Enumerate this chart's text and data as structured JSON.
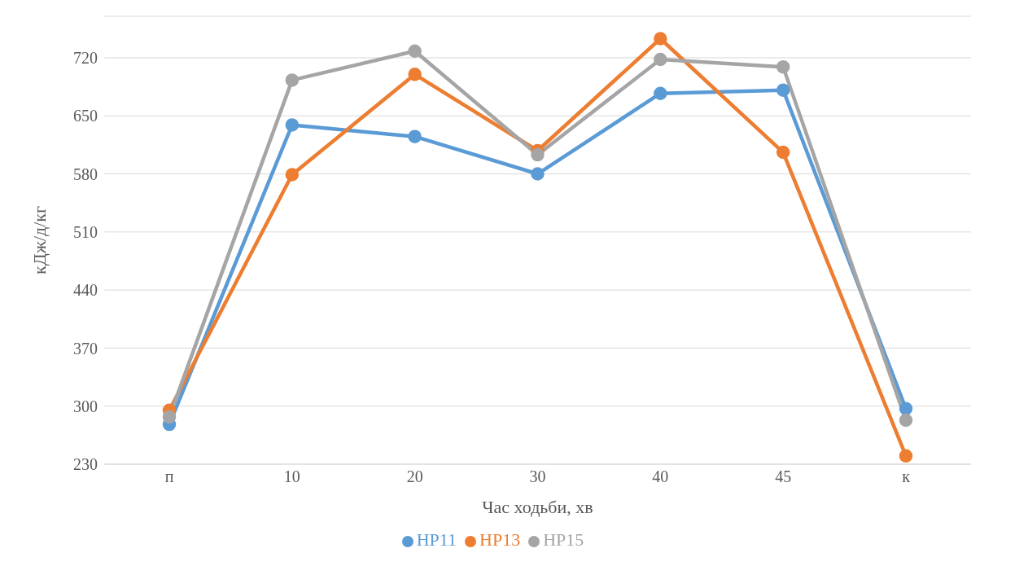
{
  "chart_data": {
    "type": "line",
    "xlabel": "Час ходьби, хв",
    "ylabel": "кДж/д/кг",
    "categories": [
      "п",
      "10",
      "20",
      "30",
      "40",
      "45",
      "к"
    ],
    "series": [
      {
        "name": "НР11",
        "color": "#5b9bd5",
        "values": [
          278,
          639,
          625,
          580,
          677,
          681,
          297
        ]
      },
      {
        "name": "НР13",
        "color": "#ed7d31",
        "values": [
          295,
          579,
          700,
          608,
          743,
          606,
          240
        ]
      },
      {
        "name": "НР15",
        "color": "#a5a5a5",
        "values": [
          287,
          693,
          728,
          603,
          718,
          709,
          283
        ]
      }
    ],
    "ylim": [
      230,
      770
    ],
    "yticks": [
      230,
      300,
      370,
      440,
      510,
      580,
      650,
      720
    ],
    "grid": "y",
    "legend": "bottom",
    "marker": "circle",
    "line_style": "solid"
  }
}
